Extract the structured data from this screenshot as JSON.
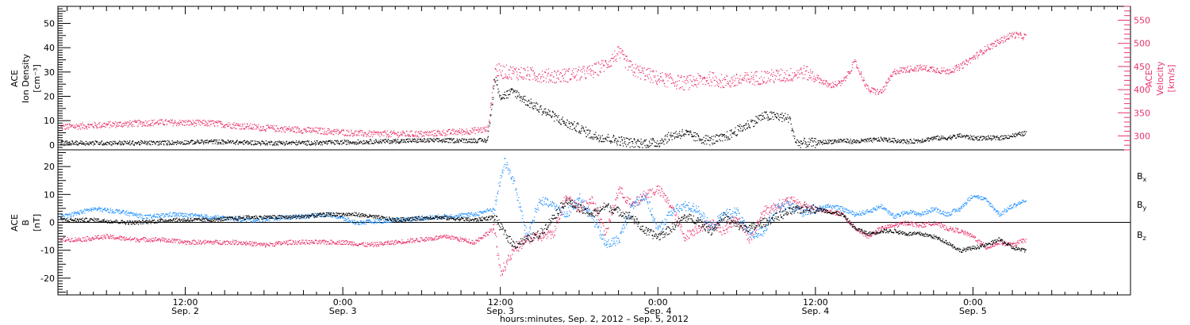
{
  "colors": {
    "black": "#000000",
    "pink": "#e8336a",
    "blue": "#1e90ff"
  },
  "x_axis": {
    "title": "hours:minutes, Sep.  2, 2012 – Sep.  5, 2012",
    "ticks": [
      {
        "x": 12,
        "time": "12:00",
        "date": "Sep. 2"
      },
      {
        "x": 24,
        "time": "0:00",
        "date": "Sep. 3"
      },
      {
        "x": 36,
        "time": "12:00",
        "date": "Sep. 3"
      },
      {
        "x": 48,
        "time": "0:00",
        "date": "Sep. 4"
      },
      {
        "x": 60,
        "time": "12:00",
        "date": "Sep. 4"
      },
      {
        "x": 72,
        "time": "0:00",
        "date": "Sep. 5"
      }
    ],
    "range": [
      2.3,
      84
    ]
  },
  "chart_data": [
    {
      "type": "scatter",
      "panel": "top",
      "x_unit": "hours since Sep. 2 00:00",
      "ylabel_left": [
        "ACE",
        "Ion Density",
        "[cm⁻³]"
      ],
      "ylabel_right": [
        "ACE",
        "Velocity",
        "[km/s]"
      ],
      "ylim_left": [
        -2,
        57
      ],
      "ylim_right": [
        270,
        580
      ],
      "yticks_left": [
        0,
        10,
        20,
        30,
        40,
        50
      ],
      "yticks_right": [
        300,
        350,
        400,
        450,
        500,
        550
      ],
      "series": [
        {
          "axis": "left",
          "color": "#000000",
          "x": [
            2.5,
            6,
            10,
            14,
            18,
            22,
            26,
            30,
            33,
            35,
            35.6,
            36,
            37,
            38,
            39,
            40,
            41,
            42,
            43,
            44,
            45,
            46,
            47,
            48,
            49,
            50,
            51,
            52,
            53,
            54,
            55,
            56,
            57,
            58,
            58.5,
            59,
            60,
            61,
            62,
            63,
            64,
            65,
            66,
            67,
            68,
            69,
            70,
            71,
            72,
            73,
            74,
            75,
            76
          ],
          "y": [
            1,
            1,
            1,
            1.5,
            1,
            1,
            1.5,
            2,
            2,
            2,
            28,
            20,
            22,
            18,
            15,
            12,
            9,
            7,
            4,
            3,
            2,
            1,
            1,
            1,
            4,
            5,
            3,
            2,
            3,
            6,
            9,
            12,
            12,
            11,
            1,
            1,
            1,
            1.5,
            2,
            1.5,
            2,
            2.5,
            2,
            1.5,
            2,
            3,
            3,
            4,
            3,
            3,
            3,
            4,
            5
          ]
        },
        {
          "axis": "right",
          "color": "#e8336a",
          "x": [
            2.5,
            6,
            10,
            14,
            18,
            22,
            26,
            30,
            33,
            35,
            35.6,
            36,
            37,
            38,
            39,
            40,
            41,
            42,
            43,
            44,
            45,
            46,
            47,
            48,
            49,
            50,
            51,
            52,
            53,
            54,
            55,
            56,
            57,
            58,
            59,
            60,
            61,
            62,
            63,
            64,
            65,
            66,
            67,
            68,
            69,
            70,
            71,
            72,
            73,
            74,
            75,
            76
          ],
          "y": [
            320,
            325,
            330,
            328,
            318,
            312,
            305,
            305,
            310,
            315,
            445,
            440,
            438,
            435,
            432,
            430,
            432,
            435,
            440,
            455,
            480,
            445,
            435,
            425,
            420,
            415,
            420,
            425,
            418,
            420,
            425,
            428,
            430,
            432,
            440,
            428,
            410,
            415,
            460,
            400,
            395,
            440,
            445,
            448,
            445,
            440,
            450,
            470,
            490,
            505,
            520,
            515
          ]
        }
      ]
    },
    {
      "type": "scatter",
      "panel": "bottom",
      "x_unit": "hours since Sep. 2 00:00",
      "ylabel_left": [
        "ACE",
        "B",
        "[nT]"
      ],
      "ylim": [
        -26,
        26
      ],
      "yticks": [
        -20,
        -10,
        0,
        10,
        20
      ],
      "legend": [
        {
          "label": "B",
          "sub": "x",
          "color": "#000000"
        },
        {
          "label": "B",
          "sub": "y",
          "color": "#1e90ff"
        },
        {
          "label": "B",
          "sub": "z",
          "color": "#e8336a"
        }
      ],
      "series": [
        {
          "color": "#000000",
          "x": [
            2.5,
            5,
            8,
            11,
            14,
            17,
            20,
            23,
            25,
            28,
            31,
            34,
            35.5,
            36.5,
            37,
            38,
            39,
            40,
            41,
            42,
            43,
            44,
            45,
            46,
            47,
            48,
            49,
            50,
            51,
            52,
            53,
            54,
            55,
            56,
            57,
            58,
            59,
            60,
            61,
            62,
            63,
            64,
            65,
            66,
            67,
            68,
            69,
            70,
            71,
            72,
            73,
            74,
            75,
            76
          ],
          "y": [
            1,
            1,
            0,
            1,
            1,
            2,
            2,
            3,
            3,
            1,
            2,
            1,
            2,
            -5,
            -8,
            -6,
            -4,
            2,
            8,
            5,
            3,
            6,
            4,
            2,
            -3,
            -5,
            -2,
            2,
            1,
            -3,
            2,
            -1,
            -2,
            0,
            2,
            4,
            5,
            5,
            4,
            3,
            -2,
            -4,
            -3,
            -3,
            -4,
            -4,
            -5,
            -7,
            -10,
            -9,
            -8,
            -6,
            -9,
            -10
          ]
        },
        {
          "color": "#1e90ff",
          "x": [
            2.5,
            5,
            7,
            9,
            11,
            14,
            17,
            20,
            23,
            25,
            28,
            31,
            34,
            35.5,
            36.3,
            37,
            38,
            39,
            40,
            41,
            42,
            43,
            44,
            45,
            46,
            47,
            48,
            49,
            50,
            51,
            52,
            53,
            54,
            55,
            56,
            57,
            58,
            59,
            60,
            61,
            62,
            63,
            64,
            65,
            66,
            67,
            68,
            69,
            70,
            71,
            72,
            73,
            74,
            75,
            76
          ],
          "y": [
            2,
            5,
            4,
            2,
            3,
            2,
            1,
            2,
            3,
            0,
            1,
            2,
            3,
            5,
            22,
            15,
            -5,
            8,
            6,
            3,
            9,
            2,
            -8,
            -6,
            6,
            10,
            -3,
            4,
            6,
            5,
            -2,
            3,
            4,
            -5,
            -3,
            5,
            6,
            4,
            5,
            6,
            5,
            3,
            4,
            6,
            2,
            4,
            3,
            5,
            3,
            5,
            10,
            8,
            3,
            6,
            8
          ]
        },
        {
          "color": "#e8336a",
          "x": [
            2.5,
            4,
            6,
            8,
            10,
            12,
            14,
            16,
            18,
            20,
            22,
            24,
            26,
            28,
            30,
            32,
            34,
            35.5,
            36,
            37,
            38,
            39,
            40,
            41,
            42,
            43,
            44,
            45,
            46,
            47,
            48,
            49,
            50,
            51,
            52,
            53,
            54,
            55,
            56,
            57,
            58,
            59,
            60,
            61,
            62,
            63,
            64,
            65,
            66,
            67,
            68,
            69,
            70,
            71,
            72,
            73,
            74,
            75,
            76
          ],
          "y": [
            -6,
            -6,
            -5,
            -6,
            -6,
            -7,
            -7,
            -7,
            -8,
            -7,
            -7,
            -7,
            -8,
            -7,
            -6,
            -5,
            -7,
            -2,
            -18,
            -10,
            -6,
            -5,
            -4,
            10,
            5,
            8,
            -4,
            12,
            6,
            10,
            12,
            6,
            -5,
            -2,
            0,
            -3,
            2,
            -6,
            4,
            6,
            8,
            6,
            5,
            4,
            3,
            -2,
            -5,
            -2,
            -1,
            0,
            -1,
            0,
            -2,
            -3,
            -5,
            -9,
            -7,
            -8,
            -6
          ]
        }
      ]
    }
  ]
}
